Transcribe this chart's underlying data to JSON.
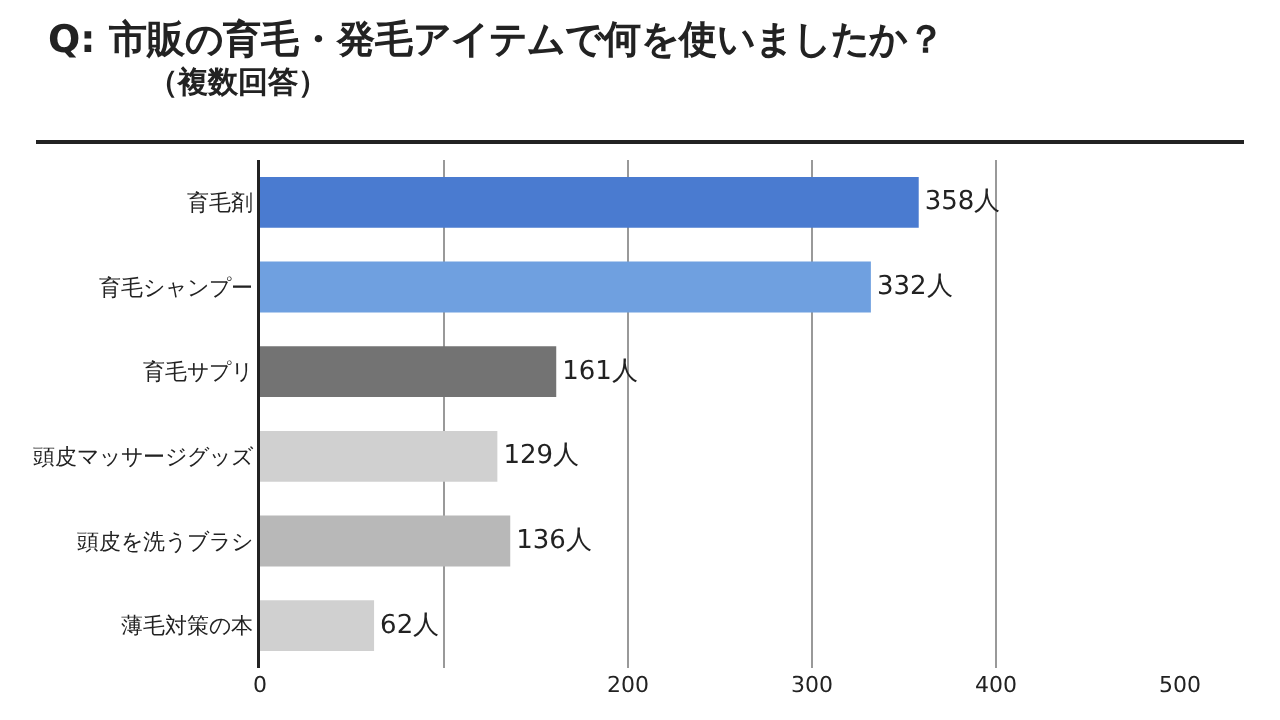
{
  "chart_data": {
    "type": "bar",
    "orientation": "horizontal",
    "title": "Q: 市販の育毛・発毛アイテムで何を使いましたか？",
    "subtitle": "（複数回答）",
    "categories": [
      "育毛剤",
      "育毛シャンプー",
      "育毛サプリ",
      "頭皮マッサージグッズ",
      "頭皮を洗うブラシ",
      "薄毛対策の本"
    ],
    "values": [
      358,
      332,
      161,
      129,
      136,
      62
    ],
    "colors": [
      "#4a7bd0",
      "#6fa0e0",
      "#737373",
      "#d0d0d0",
      "#b8b8b8",
      "#d0d0d0"
    ],
    "value_labels": [
      "358人",
      "332人",
      "161人",
      "129人",
      "136人",
      "62人"
    ],
    "xlim": [
      0,
      500
    ],
    "xticks": [
      0,
      {
        "value": 100,
        "label": null
      },
      200,
      300,
      400,
      500
    ],
    "grid": "x"
  }
}
